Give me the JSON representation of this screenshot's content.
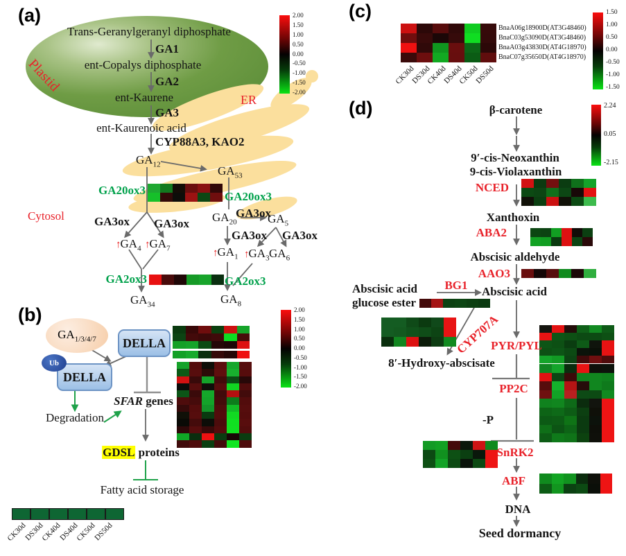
{
  "glyphs": {
    "up_arrow": "↑"
  },
  "panels": {
    "a": {
      "label": "(a)",
      "plastid": "Plastid",
      "er": "ER",
      "cytosol": "Cytosol",
      "steps": {
        "s1": "Trans-Geranylgeranyl diphosphate",
        "e1": "GA1",
        "s2": "ent-Copalys diphosphate",
        "e2": "GA2",
        "s3": "ent-Kaurene",
        "e3": "GA3",
        "s4": "ent-Kaurenoic acid",
        "e4": "CYP88A3, KAO2"
      },
      "ga20ox3": "GA20ox3",
      "ga2ox3": "GA2ox3",
      "ga3ox": "GA3ox",
      "mol": {
        "ga12": {
          "b": "GA",
          "s": "12"
        },
        "ga53": {
          "b": "GA",
          "s": "53"
        },
        "ga20": {
          "b": "GA",
          "s": "20"
        },
        "ga5": {
          "b": "GA",
          "s": "5"
        },
        "ga4": {
          "b": "GA",
          "s": "4"
        },
        "ga7": {
          "b": "GA",
          "s": "7"
        },
        "ga1": {
          "b": "GA",
          "s": "1"
        },
        "ga3": {
          "b": "GA",
          "s": "3"
        },
        "ga6": {
          "b": "GA",
          "s": "6"
        },
        "ga34": {
          "b": "GA",
          "s": "34"
        },
        "ga8": {
          "b": "GA",
          "s": "8"
        }
      }
    },
    "b": {
      "label": "(b)",
      "ga_sub": {
        "b": "GA",
        "s": "1/3/4/7"
      },
      "della": "DELLA",
      "ub": "Ub",
      "degradation": "Degradation",
      "sfar_it": "SFAR",
      "sfar_rest": " genes",
      "gdsl_hl": "GDSL",
      "gdsl_rest": " proteins",
      "fatty": "Fatty acid storage",
      "legend_labels": [
        "CK30d",
        "DS30d",
        "CK40d",
        "DS40d",
        "CK50d",
        "DS50d"
      ]
    },
    "c": {
      "label": "(c)",
      "row_labels": [
        "BnaA06g18900D(AT3G48460)",
        "BnaC03g53090D(AT3G48460)",
        "BnaA03g43830D(AT4G18970)",
        "BnaC07g35650D(AT4G18970)"
      ],
      "col_labels": [
        "CK30d",
        "DS30d",
        "CK40d",
        "DS40d",
        "CK50d",
        "DS50d"
      ]
    },
    "d": {
      "label": "(d)",
      "beta": "β-carotene",
      "neox": "9′-cis-Neoxanthin",
      "violax": "9-cis-Violaxanthin",
      "nced": "NCED",
      "xanthoxin": "Xanthoxin",
      "aba2": "ABA2",
      "aldehyde": "Abscisic aldehyde",
      "aao3": "AAO3",
      "abscisic": "Abscisic acid",
      "bg1": "BG1",
      "ge1": "Abscisic acid",
      "ge2": "glucose ester",
      "cyp707a": "CYP707A",
      "hydroxy": "8′-Hydroxy-abscisate",
      "pyr": "PYR/PYL",
      "pp2c": "PP2C",
      "minus_p": "-P",
      "snrk2": "SnRK2",
      "abf": "ABF",
      "dna": "DNA",
      "dormancy": "Seed dormancy"
    }
  },
  "colorbars": {
    "a": {
      "ticks": [
        "2.00",
        "1.50",
        "1.00",
        "0.50",
        "0.00",
        "-0.50",
        "-1.00",
        "-1.50",
        "-2.00"
      ]
    },
    "b": {
      "ticks": [
        "2.00",
        "1.50",
        "1.00",
        "0.50",
        "0.00",
        "-0.50",
        "-1.00",
        "-1.50",
        "-2.00"
      ]
    },
    "c": {
      "ticks": [
        "1.50",
        "1.00",
        "0.50",
        "0.00",
        "-0.50",
        "-1.00",
        "-1.50"
      ]
    },
    "d": {
      "ticks": [
        "2.24",
        "0.05",
        "-2.15"
      ]
    }
  },
  "heatmaps": {
    "a_ga20ox3": {
      "rows": [
        [
          "#1ea832",
          "#12791f",
          "#140d06",
          "#6b0e0e",
          "#8a1111",
          "#310808"
        ],
        [
          "#16c02a",
          "#330a08",
          "#0d0d09",
          "#9c1212",
          "#0c4713",
          "#6f0e0e"
        ]
      ]
    },
    "a_ga2ox3": {
      "rows": [
        [
          "#e81111",
          "#490b0b",
          "#200707",
          "#169a27",
          "#18a42b",
          "#0a2f10"
        ]
      ]
    },
    "b_small": {
      "rows": [
        [
          "#0a3a0f",
          "#380808",
          "#6f0d0d",
          "#0b400f",
          "#cc1111",
          "#16a42a"
        ],
        [
          "#0c4413",
          "#430a0a",
          "#3c0909",
          "#400a0a",
          "#0ddd22",
          "#480b0b"
        ],
        [
          "#14a027",
          "#15a42a",
          "#0b4a13",
          "#250707",
          "#1d0606",
          "#dd1111"
        ],
        [
          "#13a026",
          "#17aa2c",
          "#0a2e0e",
          "#350909",
          "#240707",
          "#ee1111"
        ]
      ]
    },
    "b_big": {
      "rows": [
        [
          "#15a22a",
          "#540c0c",
          "#0e0e08",
          "#5c0d0d",
          "#16a62c",
          "#560d0d"
        ],
        [
          "#0c5a16",
          "#570d0d",
          "#2c0b08",
          "#600e0e",
          "#18b02e",
          "#560c0c"
        ],
        [
          "#d31111",
          "#380a0a",
          "#15a32a",
          "#430b0b",
          "#0b4c14",
          "#270808"
        ],
        [
          "#0c0c0a",
          "#560d0d",
          "#0f0f0a",
          "#580d0d",
          "#11d622",
          "#500c0c"
        ],
        [
          "#0c5517",
          "#3a0a0a",
          "#15a82b",
          "#400b0b",
          "#b31010",
          "#420b0b"
        ],
        [
          "#4e0c0c",
          "#460b0b",
          "#14a42a",
          "#450b0b",
          "#0d7c1c",
          "#520c0c"
        ],
        [
          "#360a0a",
          "#540c0c",
          "#13952a",
          "#500c0c",
          "#12bc26",
          "#560d0d"
        ],
        [
          "#101008",
          "#560d0d",
          "#0a3a10",
          "#530c0c",
          "#11d922",
          "#540c0c"
        ],
        [
          "#0a0a06",
          "#440b0b",
          "#0d0d08",
          "#4c0c0c",
          "#10e021",
          "#580d0d"
        ],
        [
          "#2e0909",
          "#560d0d",
          "#390a0a",
          "#540c0c",
          "#11e022",
          "#520c0c"
        ],
        [
          "#10a826",
          "#0a2e0e",
          "#ee1111",
          "#0a3c10",
          "#190606",
          "#0a3c10"
        ],
        [
          "#400b0b",
          "#4f0c0c",
          "#0a3f11",
          "#430b0b",
          "#11e522",
          "#4e0c0c"
        ]
      ]
    },
    "b_legend": {
      "rows": [
        [
          "#0e6633",
          "#0e6633",
          "#0e6633",
          "#0e6633",
          "#0e6633",
          "#0e6633"
        ]
      ]
    },
    "c_heat": {
      "rows": [
        [
          "#cc1111",
          "#2c0808",
          "#570c0c",
          "#300909",
          "#10cc21",
          "#360a0a"
        ],
        [
          "#700e0e",
          "#380a0a",
          "#1b0707",
          "#360a0a",
          "#10dd22",
          "#340a0a"
        ],
        [
          "#ee1111",
          "#300909",
          "#10961f",
          "#690e0e",
          "#0c6617",
          "#2c0808"
        ],
        [
          "#3b0a0a",
          "#6c0e0e",
          "#12aa22",
          "#670e0e",
          "#0b5c15",
          "#600d0d"
        ]
      ]
    },
    "d_nced": {
      "rows": [
        [
          "#d31212",
          "#0b3a10",
          "#740f0f",
          "#0b3c11",
          "#0f701b",
          "#14a42a"
        ],
        [
          "#0c4a13",
          "#0c4513",
          "#10701b",
          "#0c4714",
          "#190808",
          "#e41212"
        ],
        [
          "#111108",
          "#0b3f11",
          "#cc1111",
          "#111108",
          "#0c4a13",
          "#3dbb4d"
        ]
      ]
    },
    "d_aba2": {
      "rows": [
        [
          "#0c4712",
          "#0c4312",
          "#119e22",
          "#dd1111",
          "#120c08",
          "#0b3f11"
        ],
        [
          "#12a223",
          "#119e22",
          "#0a3a10",
          "#dd1111",
          "#0c4413",
          "#2a0909"
        ]
      ]
    },
    "d_aao3": {
      "rows": [
        [
          "#690e0e",
          "#150707",
          "#570d0d",
          "#0f8a1d",
          "#1b0707",
          "#2fae3e"
        ]
      ]
    },
    "d_bg1": {
      "rows": [
        [
          "#440a0a",
          "#a51414",
          "#0c4112",
          "#0c4513",
          "#0b3f11",
          "#0a3a10"
        ]
      ]
    },
    "d_hydroxy": {
      "rows": [
        [
          "#145c22",
          "#145c22",
          "#0f4a18",
          "#0b3a10",
          "#10491a",
          "#e81414"
        ],
        [
          "#145c22",
          "#13591f",
          "#10521b",
          "#0f4d18",
          "#0d4414",
          "#e81414"
        ],
        [
          "#0a2f0d",
          "#128620",
          "#dd1111",
          "#0c1c0a",
          "#0d3c12",
          "#118a20"
        ]
      ]
    },
    "d_pyr": {
      "rows": [
        [
          "#15150f",
          "#e31212",
          "#230d0a",
          "#0f6018",
          "#128a22",
          "#0e5a17"
        ],
        [
          "#e81313",
          "#0d5516",
          "#0d5014",
          "#0c4a13",
          "#0c4a13",
          "#0d5014"
        ],
        [
          "#0d5516",
          "#0d5014",
          "#0a3c10",
          "#0e5a17",
          "#0f140c",
          "#e81313"
        ],
        [
          "#0d5014",
          "#0d5516",
          "#0c4a13",
          "#0b130a",
          "#0a1008",
          "#e81313"
        ],
        [
          "#14a42a",
          "#129a24",
          "#0c4413",
          "#400b0b",
          "#6f0f0f",
          "#500c0c"
        ]
      ]
    },
    "d_pp2c": {
      "rows": [
        [
          "#118522",
          "#14a42a",
          "#0b2c0e",
          "#e81313",
          "#0f100a",
          "#0d130c"
        ],
        [
          "#e01212",
          "#0c4513",
          "#3c0a0a",
          "#10831e",
          "#11861f",
          "#10821e"
        ],
        [
          "#570c0c",
          "#14b22c",
          "#b41414",
          "#260d0a",
          "#11861f",
          "#0f7a1c"
        ],
        [
          "#6f1010",
          "#12a326",
          "#b82020",
          "#0d4a15",
          "#0c4a13",
          "#118a20"
        ],
        [
          "#10821e",
          "#11861f",
          "#0e6a18",
          "#0b2c0e",
          "#12140e",
          "#ee1414"
        ],
        [
          "#0d6416",
          "#0e6a18",
          "#0d5c15",
          "#0c3f11",
          "#0f1009",
          "#ee1414"
        ],
        [
          "#0c5a15",
          "#0d5c15",
          "#0f7316",
          "#0b3a10",
          "#0c120b",
          "#ee1414"
        ],
        [
          "#0f6f18",
          "#0c5414",
          "#0d6416",
          "#0b3a10",
          "#0e0f09",
          "#ee1414"
        ],
        [
          "#0d5c15",
          "#0f7a1a",
          "#0f7318",
          "#0c420f",
          "#0f100a",
          "#ee1414"
        ]
      ]
    },
    "d_snrk2": {
      "rows": [
        [
          "#139a25",
          "#12a223",
          "#440a0a",
          "#0b180b",
          "#cc1414",
          "#0f8a1d"
        ],
        [
          "#0c4a13",
          "#11911f",
          "#0d5014",
          "#0b3f11",
          "#0a180b",
          "#ee1414"
        ],
        [
          "#0d5014",
          "#12a326",
          "#0c4a13",
          "#0a130a",
          "#0c4a13",
          "#ee1414"
        ]
      ]
    },
    "d_abf": {
      "rows": [
        [
          "#108a1e",
          "#12a423",
          "#11931f",
          "#0b2c0e",
          "#0f100a",
          "#ee1414"
        ],
        [
          "#0d5c15",
          "#12951f",
          "#0b4112",
          "#0c4a13",
          "#0b0f09",
          "#ee1414"
        ]
      ]
    }
  }
}
